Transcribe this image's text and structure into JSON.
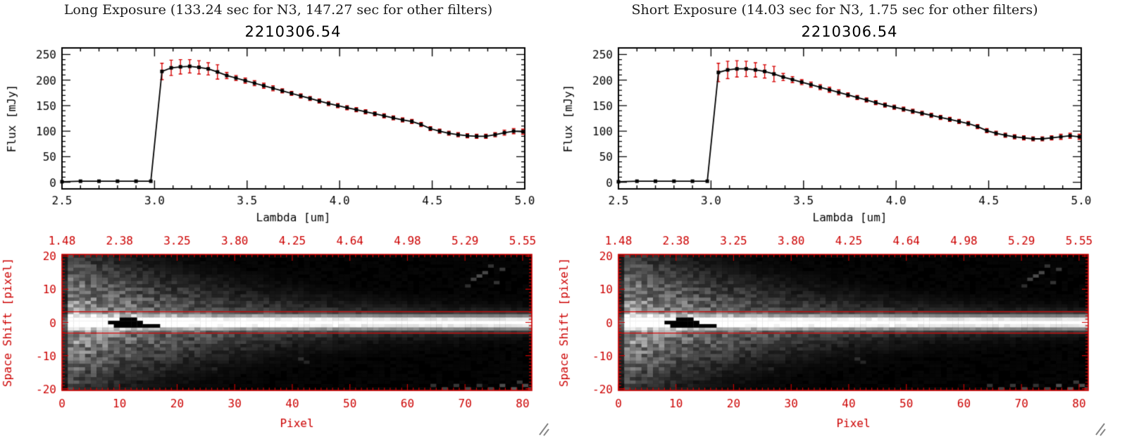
{
  "panels": [
    {
      "title": "Long Exposure (133.24 sec for N3, 147.27 sec for other filters)",
      "object_id": "2210306.54"
    },
    {
      "title": "Short Exposure (14.03 sec for N3, 1.75 sec for other filters)",
      "object_id": "2210306.54"
    }
  ],
  "colors": {
    "axis_black": "#000000",
    "axis_red": "#cc0000",
    "error_red": "#d40000"
  },
  "chart_data": [
    {
      "panel": "long-exposure",
      "type": "line",
      "title": "2210306.54",
      "xlabel": "Lambda [um]",
      "ylabel": "Flux [mJy]",
      "xlim": [
        2.5,
        5.0
      ],
      "ylim": [
        0,
        250
      ],
      "xticks": [
        2.5,
        3.0,
        3.5,
        4.0,
        4.5,
        5.0
      ],
      "xtick_labels": [
        "2.5",
        "3.0",
        "3.5",
        "4.0",
        "4.5",
        "5.0"
      ],
      "yticks": [
        0,
        50,
        100,
        150,
        200,
        250
      ],
      "marker": "square",
      "line_color": "#000000",
      "error_color": "#d40000",
      "points": [
        [
          2.5,
          1,
          2
        ],
        [
          2.6,
          2,
          2
        ],
        [
          2.7,
          2,
          2
        ],
        [
          2.8,
          2,
          2
        ],
        [
          2.9,
          2,
          2
        ],
        [
          2.98,
          2,
          2
        ],
        [
          3.04,
          217,
          16
        ],
        [
          3.09,
          224,
          15
        ],
        [
          3.14,
          226,
          14
        ],
        [
          3.19,
          227,
          13
        ],
        [
          3.24,
          225,
          13
        ],
        [
          3.29,
          222,
          12
        ],
        [
          3.34,
          216,
          14
        ],
        [
          3.39,
          209,
          6
        ],
        [
          3.44,
          204,
          5
        ],
        [
          3.49,
          199,
          5
        ],
        [
          3.54,
          194,
          5
        ],
        [
          3.59,
          189,
          5
        ],
        [
          3.64,
          184,
          5
        ],
        [
          3.69,
          179,
          4
        ],
        [
          3.74,
          174,
          4
        ],
        [
          3.79,
          169,
          4
        ],
        [
          3.84,
          164,
          4
        ],
        [
          3.89,
          159,
          4
        ],
        [
          3.94,
          154,
          4
        ],
        [
          3.99,
          150,
          4
        ],
        [
          4.04,
          146,
          4
        ],
        [
          4.09,
          142,
          4
        ],
        [
          4.14,
          138,
          4
        ],
        [
          4.19,
          134,
          4
        ],
        [
          4.24,
          130,
          4
        ],
        [
          4.29,
          126,
          4
        ],
        [
          4.34,
          122,
          4
        ],
        [
          4.39,
          119,
          4
        ],
        [
          4.44,
          113,
          4
        ],
        [
          4.49,
          105,
          4
        ],
        [
          4.54,
          100,
          4
        ],
        [
          4.59,
          96,
          4
        ],
        [
          4.64,
          93,
          4
        ],
        [
          4.69,
          91,
          4
        ],
        [
          4.74,
          90,
          4
        ],
        [
          4.79,
          90,
          4
        ],
        [
          4.84,
          93,
          4
        ],
        [
          4.89,
          97,
          5
        ],
        [
          4.94,
          100,
          5
        ],
        [
          4.99,
          99,
          5
        ]
      ]
    },
    {
      "panel": "long-exposure",
      "type": "heatmap",
      "xlabel": "Pixel",
      "ylabel": "Space Shift [pixel]",
      "xlim": [
        0,
        81.6
      ],
      "ylim": [
        -20.5,
        20.5
      ],
      "xticks": [
        0,
        10,
        20,
        30,
        40,
        50,
        60,
        70,
        80
      ],
      "yticks": [
        20,
        10,
        0,
        -10,
        -20
      ],
      "top_axis_ticklabels": [
        "1.48",
        "2.38",
        "3.25",
        "3.80",
        "4.25",
        "4.64",
        "4.98",
        "5.29",
        "5.55"
      ],
      "axis_color": "#cc0000",
      "aperture_lines_y": [
        3.2,
        -3.2
      ],
      "description": "2D dispersed spectrum image: bright core at space shift 0 across all pixels, diffuse halo widening toward low pixel values, saturated black pixels near pixel 8-16",
      "core": {
        "sigma": 1.4
      },
      "halo": {
        "sigma0": 12,
        "sigma_scale": 30,
        "sigma_min": 2.0,
        "amp0": 0.5,
        "amp_scale": 25,
        "amp_min": 0.07
      },
      "noise_seed": 42,
      "masked_black_cells": [
        [
          10,
          1
        ],
        [
          11,
          1
        ],
        [
          12,
          1
        ],
        [
          8,
          0
        ],
        [
          9,
          0
        ],
        [
          10,
          0
        ],
        [
          11,
          0
        ],
        [
          12,
          0
        ],
        [
          13,
          0
        ],
        [
          9,
          -1
        ],
        [
          10,
          -1
        ],
        [
          11,
          -1
        ],
        [
          12,
          -1
        ],
        [
          13,
          -1
        ],
        [
          14,
          -1
        ],
        [
          15,
          -1
        ],
        [
          16,
          -1
        ]
      ],
      "blobs": [
        [
          71,
          13,
          0.25
        ],
        [
          72,
          14,
          0.3
        ],
        [
          73,
          15,
          0.28
        ],
        [
          75,
          12,
          0.2
        ],
        [
          76,
          16,
          0.22
        ],
        [
          70,
          11,
          0.18
        ],
        [
          74,
          17,
          0.2
        ],
        [
          64,
          -19,
          0.2
        ],
        [
          66,
          -20,
          0.25
        ],
        [
          68,
          -19,
          0.22
        ],
        [
          70,
          -20,
          0.28
        ],
        [
          72,
          -19,
          0.2
        ],
        [
          74,
          -20,
          0.25
        ],
        [
          76,
          -19,
          0.3
        ],
        [
          78,
          -20,
          0.35
        ],
        [
          80,
          -19,
          0.3
        ],
        [
          79,
          -18,
          0.22
        ],
        [
          81,
          -20,
          0.3
        ],
        [
          41,
          -11,
          0.18
        ],
        [
          42,
          -12,
          0.15
        ],
        [
          26,
          -14,
          0.15
        ],
        [
          5,
          -17,
          0.2
        ],
        [
          7,
          -19,
          0.18
        ]
      ]
    },
    {
      "panel": "short-exposure",
      "type": "line",
      "title": "2210306.54",
      "xlabel": "Lambda [um]",
      "ylabel": "Flux [mJy]",
      "xlim": [
        2.5,
        5.0
      ],
      "ylim": [
        0,
        250
      ],
      "xticks": [
        2.5,
        3.0,
        3.5,
        4.0,
        4.5,
        5.0
      ],
      "xtick_labels": [
        "2.5",
        "3.0",
        "3.5",
        "4.0",
        "4.5",
        "5.0"
      ],
      "yticks": [
        0,
        50,
        100,
        150,
        200,
        250
      ],
      "marker": "square",
      "line_color": "#000000",
      "error_color": "#d40000",
      "points": [
        [
          2.5,
          1,
          2
        ],
        [
          2.6,
          2,
          2
        ],
        [
          2.7,
          2,
          2
        ],
        [
          2.8,
          2,
          2
        ],
        [
          2.9,
          2,
          2
        ],
        [
          2.98,
          2,
          2
        ],
        [
          3.04,
          215,
          18
        ],
        [
          3.09,
          220,
          17
        ],
        [
          3.14,
          222,
          16
        ],
        [
          3.19,
          222,
          15
        ],
        [
          3.24,
          220,
          14
        ],
        [
          3.29,
          217,
          13
        ],
        [
          3.34,
          212,
          15
        ],
        [
          3.39,
          206,
          7
        ],
        [
          3.44,
          201,
          6
        ],
        [
          3.49,
          196,
          5
        ],
        [
          3.54,
          191,
          5
        ],
        [
          3.59,
          186,
          5
        ],
        [
          3.64,
          181,
          5
        ],
        [
          3.69,
          176,
          5
        ],
        [
          3.74,
          171,
          4
        ],
        [
          3.79,
          166,
          4
        ],
        [
          3.84,
          161,
          4
        ],
        [
          3.89,
          156,
          4
        ],
        [
          3.94,
          151,
          4
        ],
        [
          3.99,
          147,
          4
        ],
        [
          4.04,
          143,
          4
        ],
        [
          4.09,
          139,
          4
        ],
        [
          4.14,
          135,
          4
        ],
        [
          4.19,
          131,
          4
        ],
        [
          4.24,
          127,
          4
        ],
        [
          4.29,
          123,
          4
        ],
        [
          4.34,
          119,
          4
        ],
        [
          4.39,
          115,
          4
        ],
        [
          4.44,
          109,
          4
        ],
        [
          4.49,
          101,
          4
        ],
        [
          4.54,
          96,
          4
        ],
        [
          4.59,
          92,
          4
        ],
        [
          4.64,
          89,
          4
        ],
        [
          4.69,
          87,
          4
        ],
        [
          4.74,
          85,
          4
        ],
        [
          4.79,
          85,
          4
        ],
        [
          4.84,
          87,
          4
        ],
        [
          4.89,
          89,
          5
        ],
        [
          4.94,
          91,
          5
        ],
        [
          4.99,
          89,
          5
        ]
      ]
    },
    {
      "panel": "short-exposure",
      "type": "heatmap",
      "xlabel": "Pixel",
      "ylabel": "Space Shift [pixel]",
      "xlim": [
        0,
        81.6
      ],
      "ylim": [
        -20.5,
        20.5
      ],
      "xticks": [
        0,
        10,
        20,
        30,
        40,
        50,
        60,
        70,
        80
      ],
      "yticks": [
        20,
        10,
        0,
        -10,
        -20
      ],
      "top_axis_ticklabels": [
        "1.48",
        "2.38",
        "3.25",
        "3.80",
        "4.25",
        "4.64",
        "4.98",
        "5.29",
        "5.55"
      ],
      "axis_color": "#cc0000",
      "aperture_lines_y": [
        3.2,
        -3.2
      ],
      "description": "2D dispersed spectrum image: bright core at space shift 0 across all pixels, diffuse halo widening toward low pixel values, saturated black pixels near pixel 8-16",
      "core": {
        "sigma": 1.4
      },
      "halo": {
        "sigma0": 12,
        "sigma_scale": 30,
        "sigma_min": 2.0,
        "amp0": 0.5,
        "amp_scale": 25,
        "amp_min": 0.07
      },
      "noise_seed": 42,
      "masked_black_cells": [
        [
          10,
          1
        ],
        [
          11,
          1
        ],
        [
          12,
          1
        ],
        [
          8,
          0
        ],
        [
          9,
          0
        ],
        [
          10,
          0
        ],
        [
          11,
          0
        ],
        [
          12,
          0
        ],
        [
          13,
          0
        ],
        [
          9,
          -1
        ],
        [
          10,
          -1
        ],
        [
          11,
          -1
        ],
        [
          12,
          -1
        ],
        [
          13,
          -1
        ],
        [
          14,
          -1
        ],
        [
          15,
          -1
        ],
        [
          16,
          -1
        ]
      ],
      "blobs": [
        [
          71,
          13,
          0.25
        ],
        [
          72,
          14,
          0.3
        ],
        [
          73,
          15,
          0.28
        ],
        [
          75,
          12,
          0.2
        ],
        [
          76,
          16,
          0.22
        ],
        [
          70,
          11,
          0.18
        ],
        [
          74,
          17,
          0.2
        ],
        [
          64,
          -19,
          0.2
        ],
        [
          66,
          -20,
          0.25
        ],
        [
          68,
          -19,
          0.22
        ],
        [
          70,
          -20,
          0.28
        ],
        [
          72,
          -19,
          0.2
        ],
        [
          74,
          -20,
          0.25
        ],
        [
          76,
          -19,
          0.3
        ],
        [
          78,
          -20,
          0.35
        ],
        [
          80,
          -19,
          0.3
        ],
        [
          79,
          -18,
          0.22
        ],
        [
          81,
          -20,
          0.3
        ],
        [
          41,
          -11,
          0.18
        ],
        [
          42,
          -12,
          0.15
        ],
        [
          26,
          -14,
          0.15
        ],
        [
          5,
          -17,
          0.2
        ],
        [
          7,
          -19,
          0.18
        ]
      ]
    }
  ]
}
